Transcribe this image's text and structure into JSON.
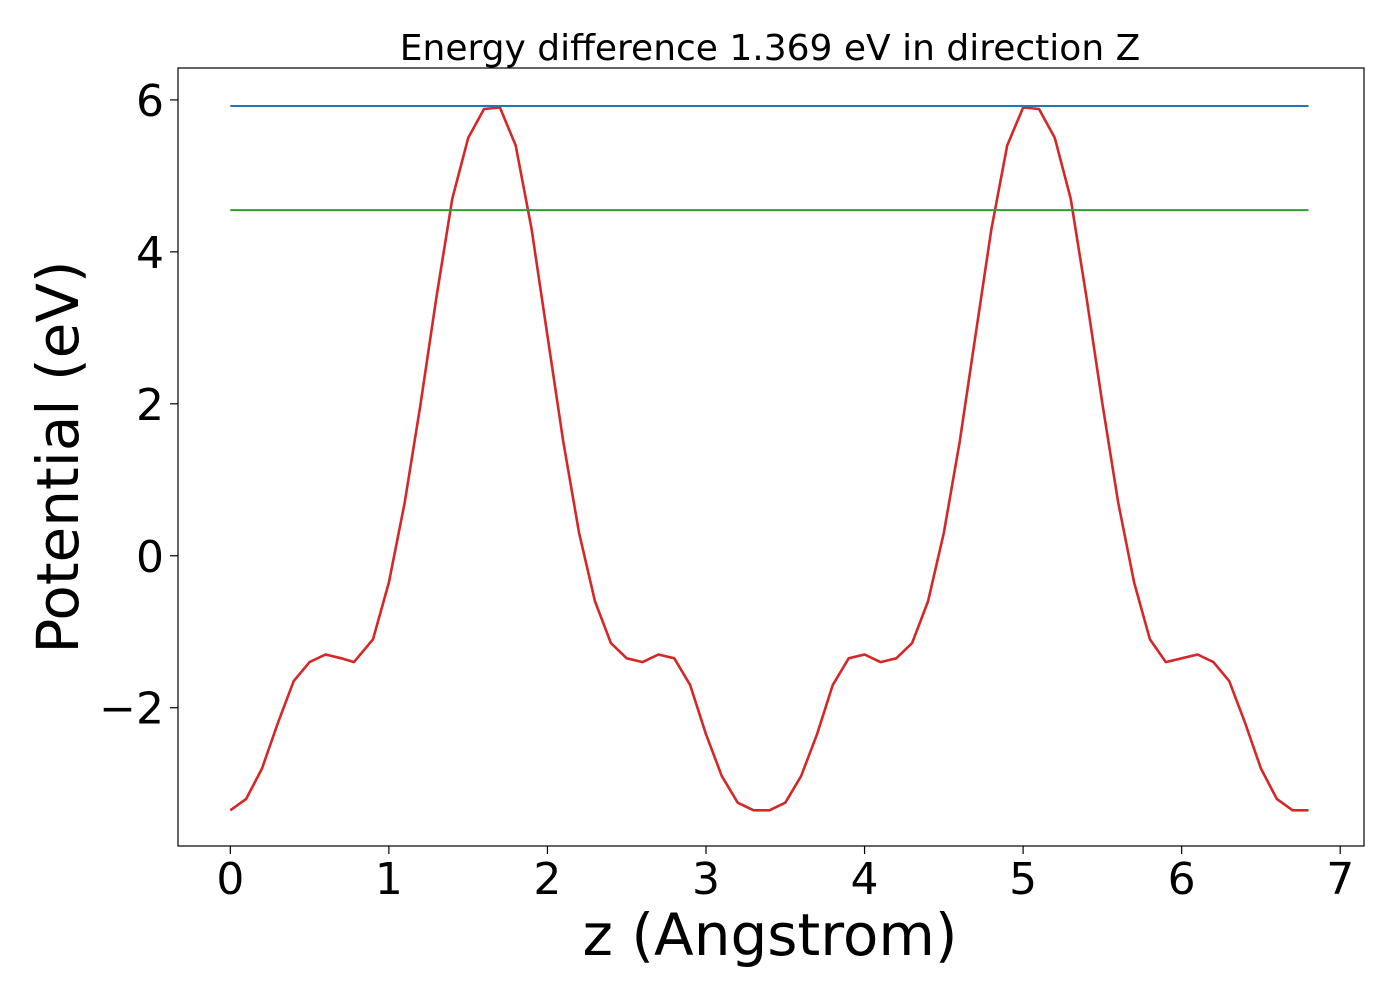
{
  "chart_data": {
    "type": "line",
    "title": "Energy difference 1.369 eV in direction Z",
    "xlabel": "z (Angstrom)",
    "ylabel": "Potential (eV)",
    "xlim": [
      -0.33,
      7.15
    ],
    "ylim": [
      -3.82,
      6.42
    ],
    "xticks": [
      0,
      1,
      2,
      3,
      4,
      5,
      6,
      7
    ],
    "xtick_labels": [
      "0",
      "1",
      "2",
      "3",
      "4",
      "5",
      "6",
      "7"
    ],
    "yticks": [
      -2,
      0,
      2,
      4,
      6
    ],
    "ytick_labels": [
      "−2",
      "0",
      "2",
      "4",
      "6"
    ],
    "grid": false,
    "legend": false,
    "series": [
      {
        "color": "#d62728",
        "x": [
          0,
          0.1,
          0.2,
          0.3,
          0.4,
          0.5,
          0.6,
          0.7,
          0.78,
          0.9,
          1.0,
          1.1,
          1.2,
          1.3,
          1.4,
          1.5,
          1.6,
          1.7,
          1.8,
          1.9,
          2.0,
          2.1,
          2.2,
          2.3,
          2.4,
          2.5,
          2.6,
          2.7,
          2.8,
          2.9,
          3.0,
          3.1,
          3.2,
          3.3,
          3.4,
          3.5,
          3.6,
          3.7,
          3.8,
          3.9,
          4.0,
          4.1,
          4.2,
          4.3,
          4.4,
          4.5,
          4.6,
          4.7,
          4.8,
          4.9,
          5.0,
          5.1,
          5.2,
          5.3,
          5.4,
          5.5,
          5.6,
          5.7,
          5.8,
          5.9,
          6.0,
          6.1,
          6.2,
          6.3,
          6.4,
          6.5,
          6.6,
          6.7,
          6.8
        ],
        "y": [
          -3.35,
          -3.2,
          -2.8,
          -2.2,
          -1.65,
          -1.4,
          -1.3,
          -1.35,
          -1.4,
          -1.1,
          -0.35,
          0.7,
          2.0,
          3.4,
          4.7,
          5.5,
          5.88,
          5.9,
          5.4,
          4.3,
          2.9,
          1.5,
          0.3,
          -0.6,
          -1.15,
          -1.35,
          -1.4,
          -1.3,
          -1.35,
          -1.7,
          -2.35,
          -2.9,
          -3.25,
          -3.35,
          -3.35,
          -3.25,
          -2.9,
          -2.35,
          -1.7,
          -1.35,
          -1.3,
          -1.4,
          -1.35,
          -1.15,
          -0.6,
          0.3,
          1.5,
          2.9,
          4.3,
          5.4,
          5.9,
          5.88,
          5.5,
          4.7,
          3.4,
          2.0,
          0.7,
          -0.35,
          -1.1,
          -1.4,
          -1.35,
          -1.3,
          -1.4,
          -1.65,
          -2.2,
          -2.8,
          -3.2,
          -3.35,
          -3.35
        ]
      },
      {
        "color": "#1f77b4",
        "x": [
          0,
          6.8
        ],
        "y": [
          5.92,
          5.92
        ]
      },
      {
        "color": "#2ca02c",
        "x": [
          0,
          6.8
        ],
        "y": [
          4.55,
          4.55
        ]
      }
    ]
  }
}
